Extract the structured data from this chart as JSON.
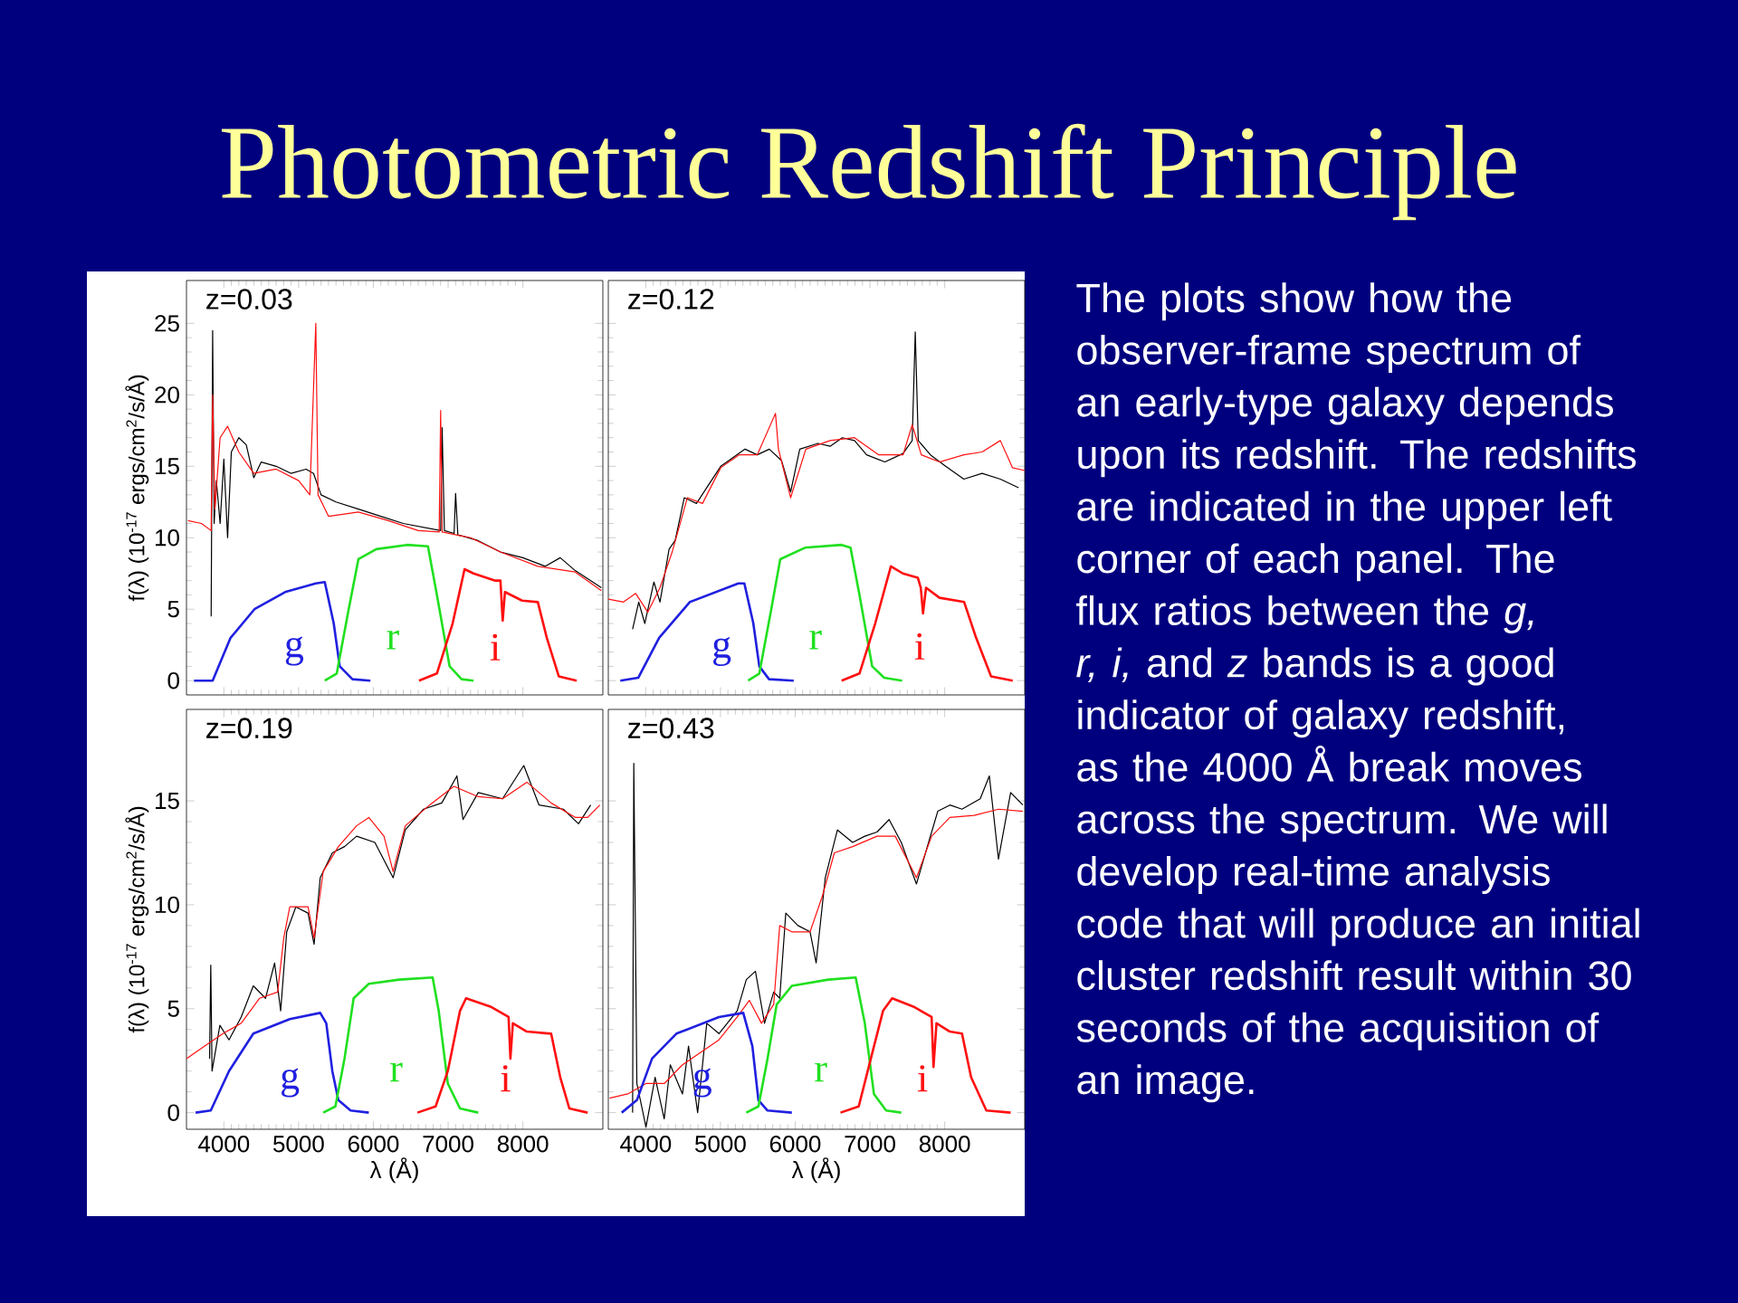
{
  "chart_data": [
    {
      "type": "other",
      "title": "Photometric Redshift Principle",
      "annotations": [
        "The plots show how the observer-frame spectrum of an early-type galaxy depends upon its redshift. The redshifts are indicated in the upper left corner of each panel. The flux ratios between the *g, r, i,* and *z* bands is a good indicator of galaxy redshift, as the 4000 Å break moves across the spectrum. We will develop real-time analysis code that will produce an initial cluster redshift result within 30 seconds of the acquisition of an image."
      ]
    },
    {
      "type": "line",
      "ylabel": "f(λ)  (10$^{-17}$ ergs/cm$^{2}$/s/Å)",
      "annotations": [
        "z=0.03"
      ],
      "xlim": [
        3500,
        9070
      ],
      "ylim": [
        -1,
        28
      ],
      "xticks": [
        4000,
        5000,
        6000,
        7000,
        8000
      ],
      "yticks": [
        0,
        5,
        10,
        15,
        20,
        25
      ],
      "tick_labels": "y",
      "series": [
        {
          "color": "#000000",
          "x": [
            3830,
            3850,
            3870,
            3900,
            3950,
            4000,
            4050,
            4100,
            4200,
            4300,
            4400,
            4500,
            4700,
            4900,
            5100,
            5200,
            5300,
            5500,
            5800,
            6100,
            6400,
            6900,
            6920,
            6950,
            7080,
            7100,
            7130,
            7400,
            7700,
            8000,
            8300,
            8500,
            8700,
            9050
          ],
          "values": [
            4.5,
            24.5,
            11,
            14,
            11,
            15.5,
            10,
            16,
            17,
            16.5,
            14.2,
            15.3,
            15,
            14.5,
            14.8,
            14.5,
            13,
            12.5,
            12,
            11.5,
            11,
            10.5,
            17.7,
            10.5,
            10.3,
            13.1,
            10.2,
            9.8,
            9,
            8.6,
            8,
            8.6,
            7.7,
            6.5
          ]
        },
        {
          "color": "#FF1010",
          "x": [
            3520,
            3700,
            3830,
            3850,
            3880,
            3950,
            4050,
            4200,
            4400,
            4700,
            5000,
            5150,
            5230,
            5260,
            5400,
            5800,
            6200,
            6600,
            6880,
            6900,
            6920,
            7300,
            7700,
            8200,
            8700,
            9050
          ],
          "values": [
            11.2,
            11,
            10.5,
            20,
            12,
            17,
            17.8,
            16,
            14.5,
            14.8,
            14,
            13,
            25,
            13,
            11.5,
            11.8,
            11.2,
            10.5,
            10.4,
            18.9,
            10.4,
            10,
            9,
            8,
            7.6,
            6.3
          ]
        },
        {
          "name": "g",
          "color": "#2020E0",
          "x": [
            3600,
            3850,
            4090,
            4410,
            4820,
            5230,
            5350,
            5470,
            5550,
            5720,
            5960
          ],
          "values": [
            0,
            0,
            3,
            5,
            6.2,
            6.8,
            6.9,
            4,
            1,
            0.1,
            0
          ]
        },
        {
          "name": "r",
          "color": "#20E020",
          "x": [
            5350,
            5510,
            5670,
            5800,
            6040,
            6450,
            6730,
            6850,
            7020,
            7180,
            7340
          ],
          "values": [
            0,
            0.5,
            5,
            8.5,
            9.2,
            9.5,
            9.4,
            6,
            1,
            0.1,
            0
          ]
        },
        {
          "name": "i",
          "color": "#FF1010",
          "x": [
            6610,
            6850,
            7060,
            7220,
            7340,
            7630,
            7700,
            7730,
            7760,
            7990,
            8200,
            8320,
            8480,
            8720
          ],
          "values": [
            0,
            0.5,
            4,
            7.8,
            7.5,
            7,
            7,
            4.2,
            6.2,
            5.6,
            5.5,
            3,
            0.3,
            0
          ]
        }
      ]
    },
    {
      "type": "line",
      "annotations": [
        "z=0.12"
      ],
      "xlim": [
        3500,
        9070
      ],
      "ylim": [
        -1,
        28
      ],
      "xticks": [
        4000,
        5000,
        6000,
        7000,
        8000
      ],
      "yticks": [
        0,
        5,
        10,
        15,
        20,
        25
      ],
      "tick_labels": false,
      "series": [
        {
          "color": "#000000",
          "x": [
            3825,
            3907,
            3988,
            4110,
            4191,
            4313,
            4394,
            4516,
            4679,
            4841,
            5004,
            5167,
            5329,
            5492,
            5654,
            5817,
            5939,
            6061,
            6305,
            6467,
            6630,
            6793,
            6955,
            7199,
            7443,
            7565,
            7606,
            7646,
            7809,
            8012,
            8256,
            8500,
            8744,
            8988
          ],
          "values": [
            3.6,
            5.5,
            4.0,
            6.9,
            5.5,
            9.2,
            9.8,
            12.8,
            12.4,
            13.7,
            15.0,
            15.6,
            16.2,
            15.8,
            16.2,
            15.4,
            13.2,
            16.2,
            16.6,
            16.4,
            17.0,
            16.8,
            15.8,
            15.3,
            15.9,
            16.8,
            24.4,
            16.8,
            15.8,
            15.0,
            14.1,
            14.5,
            14.1,
            13.5
          ]
        },
        {
          "color": "#FF1010",
          "x": [
            3500,
            3703,
            3866,
            4028,
            4191,
            4354,
            4557,
            4760,
            5004,
            5248,
            5492,
            5736,
            5776,
            5939,
            6142,
            6467,
            6793,
            7118,
            7443,
            7565,
            7687,
            7931,
            8256,
            8500,
            8744,
            8907,
            9070
          ],
          "values": [
            5.7,
            5.5,
            6.1,
            4.8,
            6.5,
            9.0,
            12.8,
            12.4,
            14.9,
            15.8,
            15.8,
            18.7,
            16.2,
            12.8,
            16.2,
            16.8,
            17.0,
            15.8,
            15.8,
            17.9,
            15.8,
            15.3,
            15.8,
            16.0,
            16.8,
            14.9,
            14.7
          ]
        },
        {
          "name": "g",
          "color": "#2020E0",
          "x": [
            3660,
            3900,
            4180,
            4590,
            5240,
            5320,
            5440,
            5520,
            5650,
            5980
          ],
          "values": [
            0,
            0.2,
            3,
            5.5,
            6.8,
            6.8,
            4,
            1,
            0.1,
            0
          ]
        },
        {
          "name": "r",
          "color": "#20E020",
          "x": [
            5370,
            5520,
            5680,
            5800,
            6130,
            6620,
            6740,
            6860,
            7030,
            7190,
            7430
          ],
          "values": [
            0,
            0.5,
            5,
            8.5,
            9.3,
            9.5,
            9.3,
            6,
            1,
            0.2,
            0
          ]
        },
        {
          "name": "i",
          "color": "#FF1010",
          "x": [
            6620,
            6860,
            7070,
            7280,
            7440,
            7640,
            7680,
            7710,
            7750,
            7930,
            8260,
            8420,
            8620,
            8910
          ],
          "values": [
            0,
            0.5,
            4,
            8,
            7.5,
            7.2,
            6.5,
            4.7,
            6.5,
            5.8,
            5.5,
            3,
            0.3,
            0
          ]
        }
      ]
    },
    {
      "type": "line",
      "xlabel": "λ  (Å)",
      "ylabel": "f(λ)  (10$^{-17}$ ergs/cm$^{2}$/s/Å)",
      "annotations": [
        "z=0.19"
      ],
      "xlim": [
        3500,
        9070
      ],
      "ylim": [
        -0.8,
        19.4
      ],
      "xticks": [
        4000,
        5000,
        6000,
        7000,
        8000
      ],
      "yticks": [
        0,
        5,
        10,
        15
      ],
      "series": [
        {
          "color": "#000000",
          "x": [
            3809,
            3825,
            3842,
            3947,
            4069,
            4232,
            4394,
            4557,
            4679,
            4760,
            4841,
            4963,
            5126,
            5207,
            5289,
            5451,
            5614,
            5776,
            6020,
            6264,
            6427,
            6671,
            6915,
            7118,
            7199,
            7403,
            7728,
            8012,
            8216,
            8541,
            8744,
            8907
          ],
          "values": [
            2.6,
            7.1,
            2.0,
            4.2,
            3.5,
            4.6,
            6.1,
            5.5,
            7.2,
            4.9,
            8.7,
            9.9,
            9.6,
            8.1,
            11.3,
            12.5,
            12.8,
            13.3,
            13.0,
            11.3,
            13.6,
            14.6,
            14.9,
            16.2,
            14.1,
            15.4,
            15.1,
            16.7,
            14.8,
            14.6,
            13.9,
            14.8
          ]
        },
        {
          "color": "#FF1010",
          "x": [
            3500,
            3744,
            3988,
            4232,
            4476,
            4720,
            4801,
            4882,
            5126,
            5207,
            5329,
            5532,
            5776,
            5939,
            6142,
            6264,
            6427,
            6752,
            7077,
            7403,
            7728,
            8053,
            8378,
            8703,
            8866,
            9029
          ],
          "values": [
            2.6,
            3.2,
            3.8,
            4.3,
            5.5,
            5.8,
            8.4,
            9.9,
            9.9,
            8.4,
            11.6,
            12.8,
            13.8,
            14.2,
            13.3,
            11.6,
            13.8,
            14.8,
            15.7,
            15.2,
            15.1,
            15.9,
            14.9,
            14.2,
            14.2,
            14.8
          ]
        },
        {
          "name": "g",
          "color": "#2020E0",
          "x": [
            3622,
            3825,
            4069,
            4394,
            4882,
            5289,
            5370,
            5451,
            5532,
            5695,
            5939
          ],
          "values": [
            0,
            0.1,
            2.0,
            3.8,
            4.5,
            4.8,
            4.3,
            2.0,
            0.6,
            0.1,
            0
          ]
        },
        {
          "name": "r",
          "color": "#20E020",
          "x": [
            5329,
            5492,
            5614,
            5736,
            5939,
            6346,
            6793,
            6874,
            6996,
            7159,
            7403
          ],
          "values": [
            0,
            0.3,
            2.6,
            5.5,
            6.2,
            6.4,
            6.5,
            4.9,
            1.4,
            0.2,
            0
          ]
        },
        {
          "name": "i",
          "color": "#FF1010",
          "x": [
            6589,
            6833,
            6996,
            7159,
            7240,
            7566,
            7809,
            7833,
            7866,
            8053,
            8378,
            8500,
            8622,
            8866
          ],
          "values": [
            0,
            0.3,
            2.0,
            4.9,
            5.5,
            5.1,
            4.6,
            2.6,
            4.3,
            3.9,
            3.8,
            1.7,
            0.2,
            0
          ]
        }
      ]
    },
    {
      "type": "line",
      "xlabel": "λ  (Å)",
      "annotations": [
        "z=0.43"
      ],
      "xlim": [
        3500,
        9070
      ],
      "ylim": [
        -0.8,
        19.4
      ],
      "xticks": [
        4000,
        5000,
        6000,
        7000,
        8000
      ],
      "yticks": [
        0,
        5,
        10,
        15
      ],
      "tick_labels": "x",
      "series": [
        {
          "color": "#000000",
          "x": [
            3825,
            3841,
            3882,
            4004,
            4126,
            4248,
            4329,
            4492,
            4573,
            4695,
            4817,
            4980,
            5224,
            5346,
            5468,
            5590,
            5712,
            5793,
            5874,
            6037,
            6199,
            6280,
            6402,
            6565,
            6768,
            6931,
            7094,
            7256,
            7419,
            7622,
            7784,
            7907,
            8069,
            8231,
            8475,
            8597,
            8719,
            8882,
            9045
          ],
          "values": [
            0,
            16.8,
            1.4,
            -0.7,
            1.7,
            -0.3,
            2.3,
            0.9,
            3.2,
            0,
            4.3,
            3.8,
            4.9,
            6.4,
            6.8,
            4.3,
            5.8,
            5.5,
            9.6,
            9.0,
            8.7,
            7.2,
            11.3,
            13.6,
            13.0,
            13.3,
            13.5,
            14.1,
            13.0,
            11.0,
            13.0,
            14.5,
            14.8,
            14.6,
            15.1,
            16.2,
            12.2,
            15.4,
            14.8
          ]
        },
        {
          "color": "#FF1010",
          "x": [
            3516,
            3760,
            4004,
            4248,
            4492,
            4736,
            4980,
            5224,
            5386,
            5549,
            5712,
            5793,
            5955,
            6199,
            6362,
            6524,
            6768,
            7094,
            7338,
            7622,
            7825,
            8069,
            8394,
            8719,
            9045
          ],
          "values": [
            0.7,
            0.9,
            1.4,
            1.4,
            2.3,
            2.9,
            3.5,
            4.6,
            5.4,
            4.3,
            5.2,
            9.0,
            8.7,
            8.7,
            10.4,
            12.5,
            12.8,
            13.3,
            13.3,
            11.3,
            13.3,
            14.2,
            14.3,
            14.6,
            14.5
          ]
        },
        {
          "name": "g",
          "color": "#2020E0",
          "x": [
            3679,
            3882,
            4085,
            4411,
            4980,
            5305,
            5427,
            5508,
            5630,
            5955
          ],
          "values": [
            0,
            0.6,
            2.6,
            3.8,
            4.6,
            4.8,
            3.2,
            0.6,
            0.1,
            0
          ]
        },
        {
          "name": "r",
          "color": "#20E020",
          "x": [
            5346,
            5508,
            5630,
            5752,
            5955,
            6443,
            6809,
            6931,
            7053,
            7216,
            7419
          ],
          "values": [
            0,
            0.3,
            2.6,
            5.2,
            6.1,
            6.4,
            6.5,
            4.3,
            0.9,
            0.1,
            0
          ]
        },
        {
          "name": "i",
          "color": "#FF1010",
          "x": [
            6606,
            6850,
            7012,
            7175,
            7297,
            7581,
            7825,
            7850,
            7890,
            8069,
            8231,
            8353,
            8557,
            8882
          ],
          "values": [
            0,
            0.3,
            2.6,
            4.9,
            5.5,
            5.1,
            4.6,
            2.2,
            4.3,
            3.9,
            3.8,
            1.7,
            0.1,
            0
          ]
        }
      ]
    }
  ]
}
